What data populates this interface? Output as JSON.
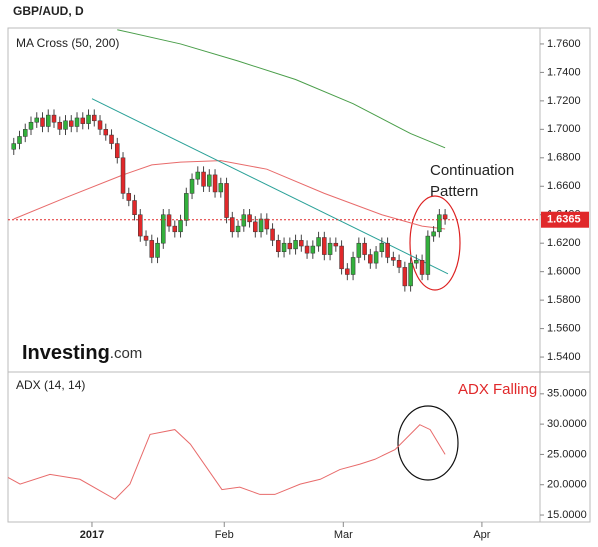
{
  "chart_data": [
    {
      "type": "candlestick",
      "title": "GBP/AUD, D",
      "subtitle": "MA Cross (50, 200)",
      "x": [
        1,
        2,
        3,
        4,
        5,
        6,
        7,
        8,
        9,
        10,
        11,
        12,
        13,
        14,
        15,
        16,
        17,
        18,
        19,
        20,
        21,
        22,
        23,
        24,
        25,
        26,
        27,
        28,
        29,
        30,
        31,
        32,
        33,
        34,
        35,
        36,
        37,
        38,
        39,
        40,
        41,
        42,
        43,
        44,
        45,
        46,
        47,
        48,
        49,
        50,
        51,
        52,
        53,
        54,
        55,
        56,
        57,
        58,
        59,
        60,
        61,
        62,
        63,
        64,
        65,
        66,
        67,
        68,
        69,
        70,
        71,
        72,
        73,
        74,
        75,
        76
      ],
      "open": [
        1.686,
        1.69,
        1.695,
        1.7,
        1.705,
        1.708,
        1.702,
        1.71,
        1.705,
        1.7,
        1.706,
        1.702,
        1.708,
        1.704,
        1.71,
        1.706,
        1.7,
        1.696,
        1.69,
        1.68,
        1.655,
        1.65,
        1.64,
        1.625,
        1.622,
        1.61,
        1.62,
        1.64,
        1.632,
        1.628,
        1.636,
        1.655,
        1.665,
        1.67,
        1.66,
        1.668,
        1.656,
        1.662,
        1.638,
        1.628,
        1.632,
        1.64,
        1.635,
        1.628,
        1.637,
        1.63,
        1.622,
        1.614,
        1.62,
        1.616,
        1.622,
        1.618,
        1.613,
        1.618,
        1.624,
        1.612,
        1.62,
        1.618,
        1.602,
        1.598,
        1.61,
        1.62,
        1.612,
        1.606,
        1.614,
        1.62,
        1.61,
        1.608,
        1.603,
        1.59,
        1.606,
        1.608,
        1.598,
        1.625,
        1.628,
        1.64
      ],
      "high": [
        1.694,
        1.699,
        1.704,
        1.709,
        1.712,
        1.712,
        1.714,
        1.714,
        1.709,
        1.71,
        1.71,
        1.712,
        1.712,
        1.714,
        1.714,
        1.71,
        1.704,
        1.7,
        1.694,
        1.684,
        1.659,
        1.654,
        1.644,
        1.629,
        1.626,
        1.624,
        1.644,
        1.644,
        1.636,
        1.64,
        1.659,
        1.669,
        1.674,
        1.674,
        1.672,
        1.672,
        1.666,
        1.666,
        1.642,
        1.636,
        1.644,
        1.644,
        1.639,
        1.641,
        1.641,
        1.634,
        1.626,
        1.624,
        1.624,
        1.626,
        1.626,
        1.622,
        1.622,
        1.628,
        1.628,
        1.624,
        1.624,
        1.622,
        1.606,
        1.614,
        1.624,
        1.624,
        1.616,
        1.618,
        1.624,
        1.624,
        1.614,
        1.612,
        1.607,
        1.61,
        1.612,
        1.612,
        1.629,
        1.632,
        1.644,
        1.644
      ],
      "low": [
        1.682,
        1.686,
        1.691,
        1.696,
        1.701,
        1.698,
        1.698,
        1.701,
        1.696,
        1.696,
        1.698,
        1.698,
        1.7,
        1.7,
        1.702,
        1.696,
        1.692,
        1.686,
        1.676,
        1.651,
        1.646,
        1.636,
        1.621,
        1.618,
        1.606,
        1.606,
        1.616,
        1.628,
        1.624,
        1.624,
        1.632,
        1.651,
        1.661,
        1.656,
        1.656,
        1.652,
        1.652,
        1.634,
        1.624,
        1.624,
        1.628,
        1.631,
        1.624,
        1.624,
        1.626,
        1.618,
        1.61,
        1.61,
        1.612,
        1.612,
        1.614,
        1.609,
        1.609,
        1.614,
        1.608,
        1.608,
        1.614,
        1.598,
        1.594,
        1.594,
        1.606,
        1.608,
        1.602,
        1.602,
        1.61,
        1.606,
        1.604,
        1.599,
        1.586,
        1.586,
        1.602,
        1.594,
        1.594,
        1.621,
        1.624,
        1.633
      ],
      "close": [
        1.69,
        1.695,
        1.7,
        1.705,
        1.708,
        1.702,
        1.71,
        1.705,
        1.7,
        1.706,
        1.702,
        1.708,
        1.704,
        1.71,
        1.706,
        1.7,
        1.696,
        1.69,
        1.68,
        1.655,
        1.65,
        1.64,
        1.625,
        1.622,
        1.61,
        1.62,
        1.64,
        1.632,
        1.628,
        1.636,
        1.655,
        1.665,
        1.67,
        1.66,
        1.668,
        1.656,
        1.662,
        1.638,
        1.628,
        1.632,
        1.64,
        1.635,
        1.628,
        1.637,
        1.63,
        1.622,
        1.614,
        1.62,
        1.616,
        1.622,
        1.618,
        1.613,
        1.618,
        1.624,
        1.612,
        1.62,
        1.618,
        1.602,
        1.598,
        1.61,
        1.62,
        1.612,
        1.606,
        1.614,
        1.62,
        1.61,
        1.608,
        1.603,
        1.59,
        1.606,
        1.608,
        1.598,
        1.625,
        1.628,
        1.64,
        1.637
      ],
      "up_color": "#33b03c",
      "down_color": "#e0282a",
      "series": [
        {
          "color": "#e86b6b",
          "x": [
            1,
            10,
            20,
            25,
            30,
            37,
            45,
            55,
            65,
            72,
            76
          ],
          "values": [
            1.637,
            1.652,
            1.668,
            1.675,
            1.677,
            1.678,
            1.672,
            1.655,
            1.64,
            1.632,
            1.63
          ]
        },
        {
          "color": "#4a9e4a",
          "x": [
            19,
            30,
            40,
            50,
            60,
            70,
            76
          ],
          "values": [
            1.77,
            1.76,
            1.748,
            1.735,
            1.718,
            1.697,
            1.687
          ]
        }
      ],
      "trendline": {
        "color": "#2aa198",
        "x": [
          14.6,
          76.5
        ],
        "values": [
          1.7215,
          1.5985
        ]
      },
      "last_price": 1.6365,
      "last_price_color": "#e0282a",
      "annotation": [
        "Continuation",
        "Pattern"
      ],
      "xlim": [
        0,
        92.5
      ],
      "ylim": [
        1.5295,
        1.7712
      ],
      "yticks": [
        {
          "value": 1.76,
          "label": "1.7600"
        },
        {
          "value": 1.74,
          "label": "1.7400"
        },
        {
          "value": 1.72,
          "label": "1.7200"
        },
        {
          "value": 1.7,
          "label": "1.7000"
        },
        {
          "value": 1.68,
          "label": "1.6800"
        },
        {
          "value": 1.66,
          "label": "1.6600"
        },
        {
          "value": 1.64,
          "label": "1.6400"
        },
        {
          "value": 1.62,
          "label": "1.6200"
        },
        {
          "value": 1.6,
          "label": "1.6000"
        },
        {
          "value": 1.58,
          "label": "1.5800"
        },
        {
          "value": 1.56,
          "label": "1.5600"
        },
        {
          "value": 1.54,
          "label": "1.5400"
        }
      ]
    },
    {
      "type": "line",
      "subtitle": "ADX (14, 14)",
      "annotation": "ADX Falling",
      "color": "#e86b6b",
      "x": [
        0,
        2.1,
        7.3,
        12.5,
        18.6,
        21.2,
        24.7,
        29.0,
        31.7,
        37.2,
        40.3,
        43.8,
        46.4,
        50.8,
        54.3,
        57.7,
        61.2,
        63.8,
        67.3,
        71.6,
        73.4,
        76.0
      ],
      "values": [
        21.2,
        20.1,
        21.7,
        20.9,
        17.6,
        20.1,
        28.3,
        29.1,
        26.7,
        19.2,
        19.6,
        18.4,
        18.4,
        20.1,
        20.9,
        22.5,
        23.4,
        24.2,
        25.8,
        29.9,
        29.1,
        25.0
      ],
      "xlim": [
        0,
        92.5
      ],
      "ylim": [
        13.85,
        38.6
      ],
      "yticks": [
        {
          "value": 35,
          "label": "35.0000"
        },
        {
          "value": 30,
          "label": "30.0000"
        },
        {
          "value": 25,
          "label": "25.0000"
        },
        {
          "value": 20,
          "label": "20.0000"
        },
        {
          "value": 15,
          "label": "15.0000"
        }
      ],
      "xticks": [
        {
          "value": 14.6,
          "label": "2017"
        },
        {
          "value": 37.6,
          "label": "Feb"
        },
        {
          "value": 58.3,
          "label": "Mar"
        },
        {
          "value": 82.4,
          "label": "Apr"
        }
      ]
    }
  ],
  "logo": {
    "name": "Investing",
    "suffix": ".com"
  }
}
